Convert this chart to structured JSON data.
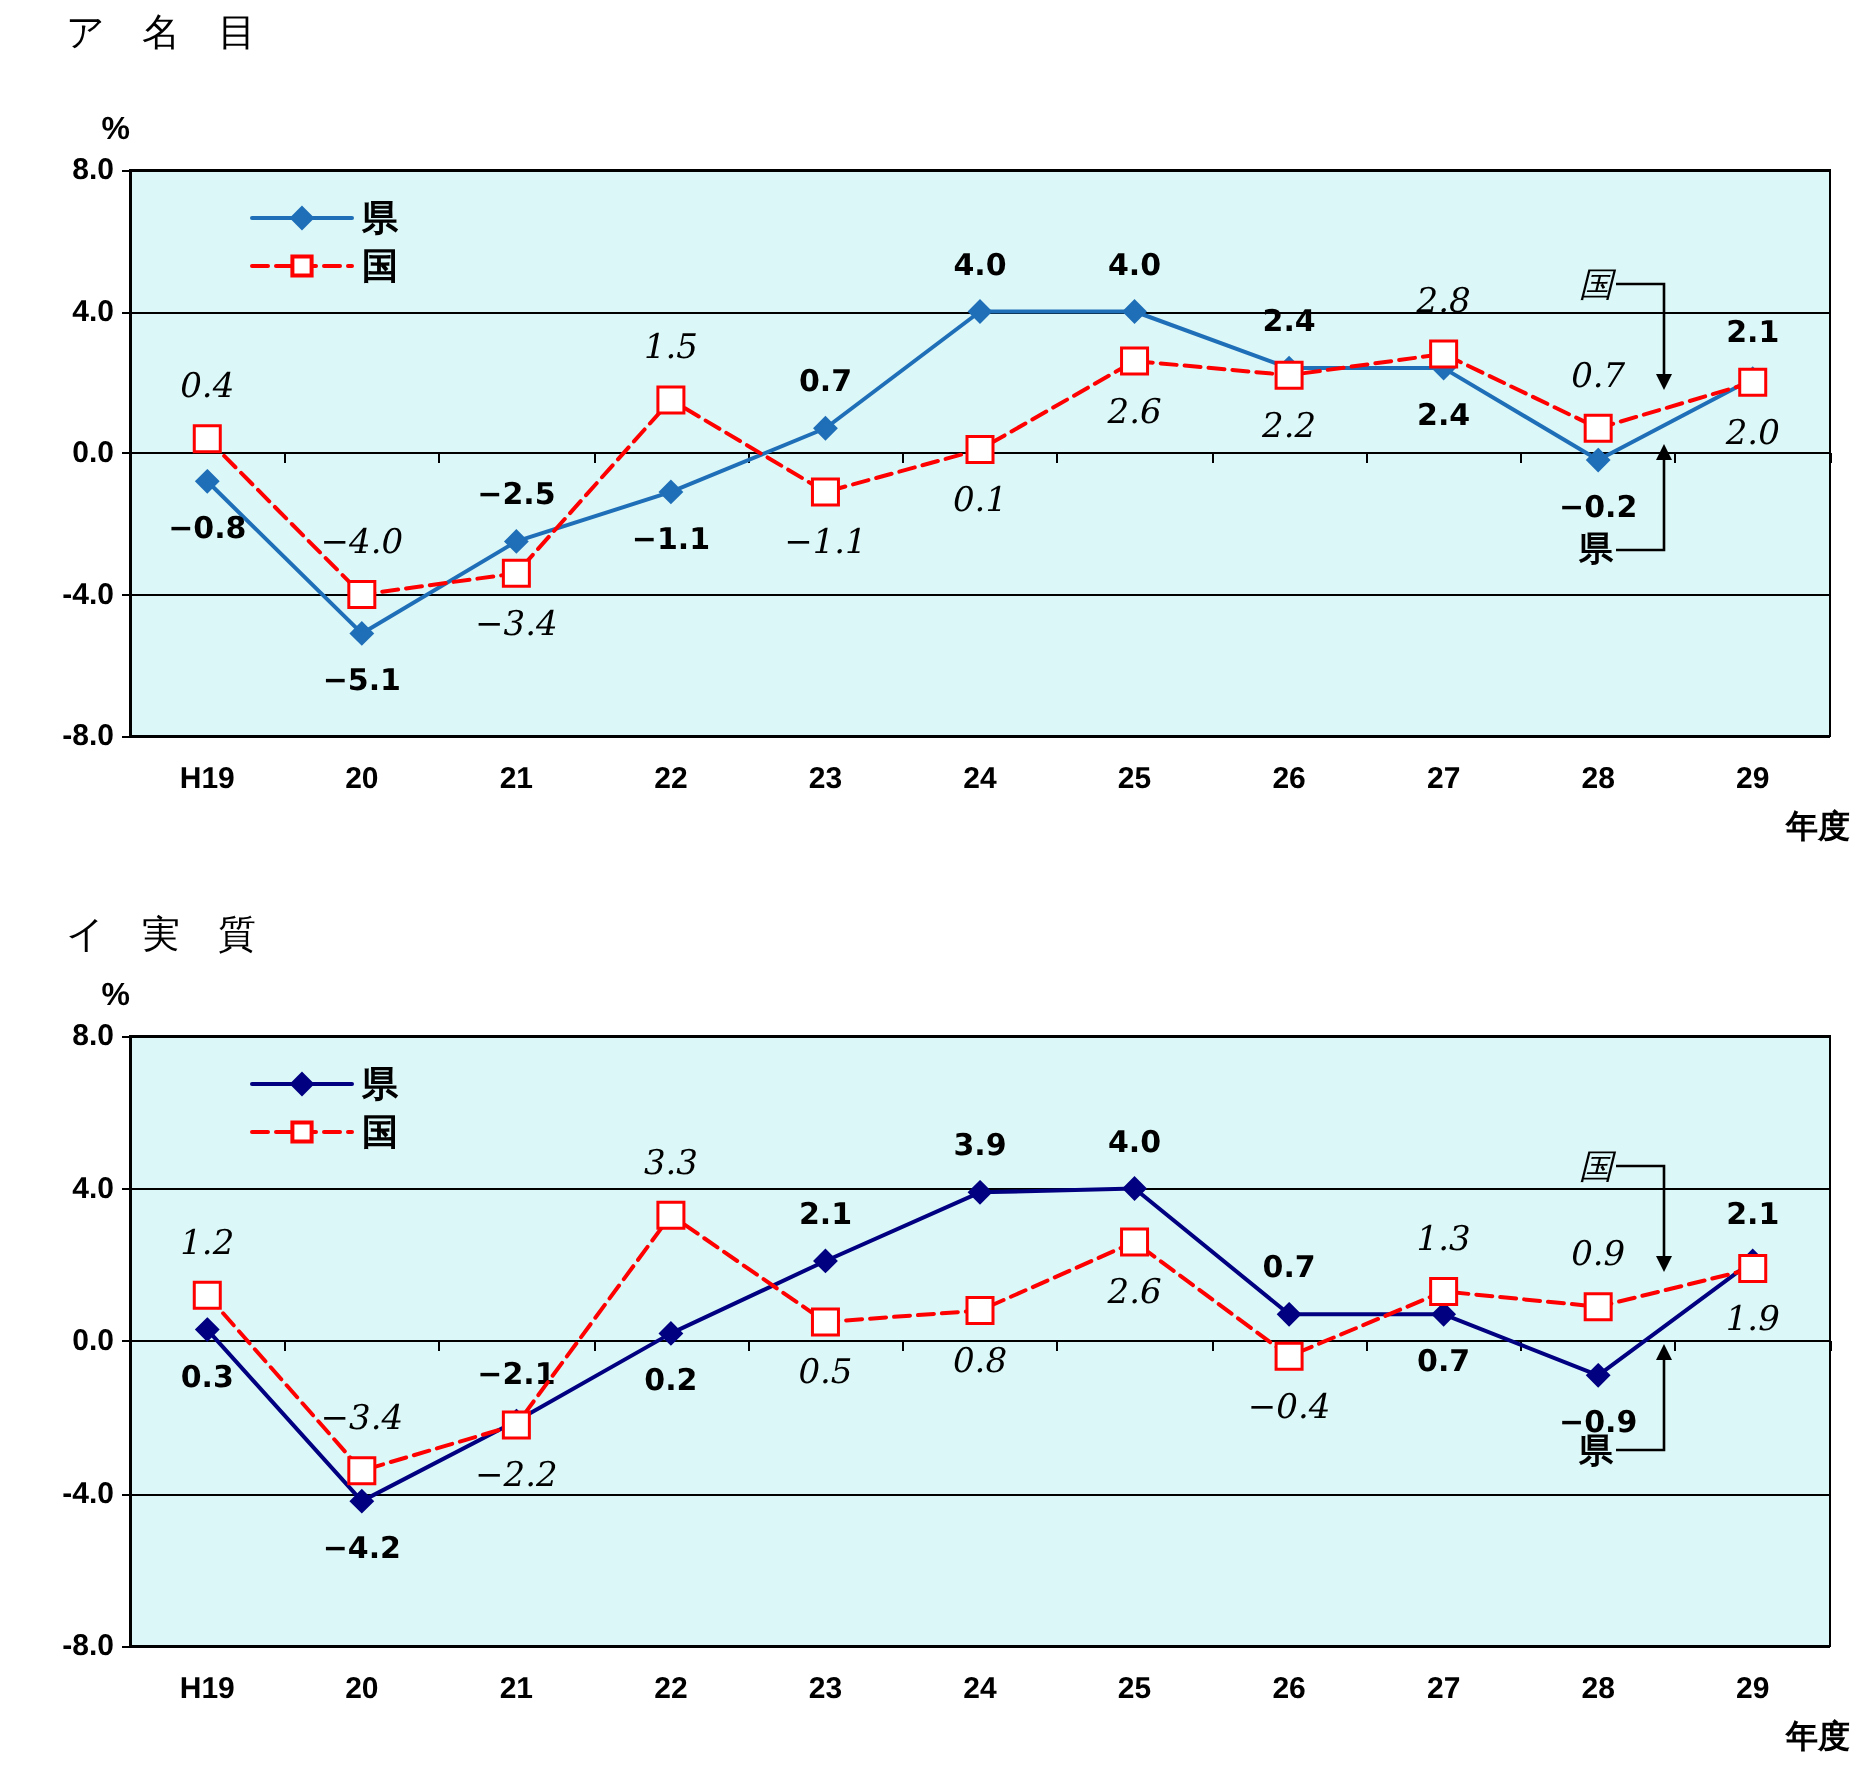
{
  "chart_data": [
    {
      "type": "line",
      "title": "ア　名　目",
      "ylabel": "%",
      "xlabel": "年度",
      "categories": [
        "H19",
        "20",
        "21",
        "22",
        "23",
        "24",
        "25",
        "26",
        "27",
        "28",
        "29"
      ],
      "series": [
        {
          "name": "県",
          "color": "#1f6fb8",
          "marker": "diamond",
          "line_style": "solid",
          "values": [
            -0.8,
            -5.1,
            -2.5,
            -1.1,
            0.7,
            4.0,
            4.0,
            2.4,
            2.4,
            -0.2,
            2.1
          ],
          "value_labels": [
            "−0.8",
            "−5.1",
            "−2.5",
            "−1.1",
            "0.7",
            "4.0",
            "4.0",
            "2.4",
            "2.4",
            "−0.2",
            "2.1"
          ]
        },
        {
          "name": "国",
          "color": "#ff0000",
          "marker": "square",
          "line_style": "dashed",
          "values": [
            0.4,
            -4.0,
            -3.4,
            1.5,
            -1.1,
            0.1,
            2.6,
            2.2,
            2.8,
            0.7,
            2.0
          ],
          "value_labels": [
            "0.4",
            "−4.0",
            "−3.4",
            "1.5",
            "−1.1",
            "0.1",
            "2.6",
            "2.2",
            "2.8",
            "0.7",
            "2.0"
          ]
        }
      ],
      "ylim": [
        -8,
        8
      ],
      "yticks": [
        {
          "value": -8,
          "label": "-8.0"
        },
        {
          "value": -4,
          "label": "-4.0"
        },
        {
          "value": 0,
          "label": "0.0"
        },
        {
          "value": 4,
          "label": "4.0"
        },
        {
          "value": 8,
          "label": "8.0"
        }
      ],
      "grid": "y",
      "legend": "top left",
      "annotations": [
        "国",
        "県"
      ]
    },
    {
      "type": "line",
      "title": "イ　実　質",
      "ylabel": "%",
      "xlabel": "年度",
      "categories": [
        "H19",
        "20",
        "21",
        "22",
        "23",
        "24",
        "25",
        "26",
        "27",
        "28",
        "29"
      ],
      "series": [
        {
          "name": "県",
          "color": "#000080",
          "marker": "diamond",
          "line_style": "solid",
          "values": [
            0.3,
            -4.2,
            -2.1,
            0.2,
            2.1,
            3.9,
            4.0,
            0.7,
            0.7,
            -0.9,
            2.1
          ],
          "value_labels": [
            "0.3",
            "−4.2",
            "−2.1",
            "0.2",
            "2.1",
            "3.9",
            "4.0",
            "0.7",
            "0.7",
            "−0.9",
            "2.1"
          ]
        },
        {
          "name": "国",
          "color": "#ff0000",
          "marker": "square",
          "line_style": "dashed",
          "values": [
            1.2,
            -3.4,
            -2.2,
            3.3,
            0.5,
            0.8,
            2.6,
            -0.4,
            1.3,
            0.9,
            1.9
          ],
          "value_labels": [
            "1.2",
            "−3.4",
            "−2.2",
            "3.3",
            "0.5",
            "0.8",
            "2.6",
            "−0.4",
            "1.3",
            "0.9",
            "1.9"
          ]
        }
      ],
      "ylim": [
        -8,
        8
      ],
      "yticks": [
        {
          "value": -8,
          "label": "-8.0"
        },
        {
          "value": -4,
          "label": "-4.0"
        },
        {
          "value": 0,
          "label": "0.0"
        },
        {
          "value": 4,
          "label": "4.0"
        },
        {
          "value": 8,
          "label": "8.0"
        }
      ],
      "grid": "y",
      "legend": "top left",
      "annotations": [
        "国",
        "県"
      ]
    }
  ]
}
